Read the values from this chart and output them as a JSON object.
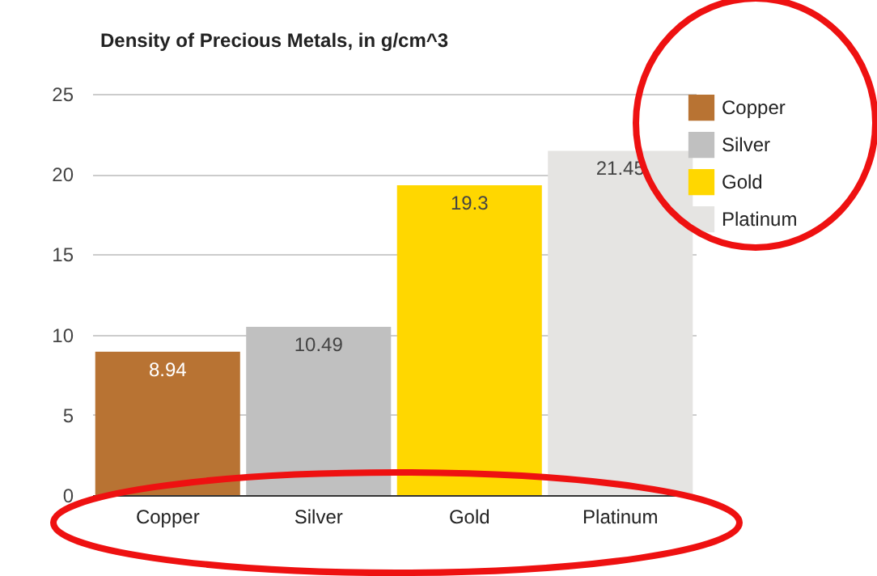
{
  "chart_data": {
    "type": "bar",
    "title": "Density of Precious Metals, in g/cm^3",
    "categories": [
      "Copper",
      "Silver",
      "Gold",
      "Platinum"
    ],
    "series": [
      {
        "name": "Copper",
        "color": "#b87333",
        "values": [
          8.94,
          null,
          null,
          null
        ]
      },
      {
        "name": "Silver",
        "color": "#c0c0c0",
        "values": [
          null,
          10.49,
          null,
          null
        ]
      },
      {
        "name": "Gold",
        "color": "#ffd700",
        "values": [
          null,
          null,
          19.3,
          null
        ]
      },
      {
        "name": "Platinum",
        "color": "#e5e4e2",
        "values": [
          null,
          null,
          null,
          21.45
        ]
      }
    ],
    "stacked": true,
    "ylim": [
      0,
      25
    ],
    "yticks": [
      0,
      5,
      10,
      15,
      20,
      25
    ],
    "grid": "y",
    "legend": "top right",
    "data_labels": true
  }
}
